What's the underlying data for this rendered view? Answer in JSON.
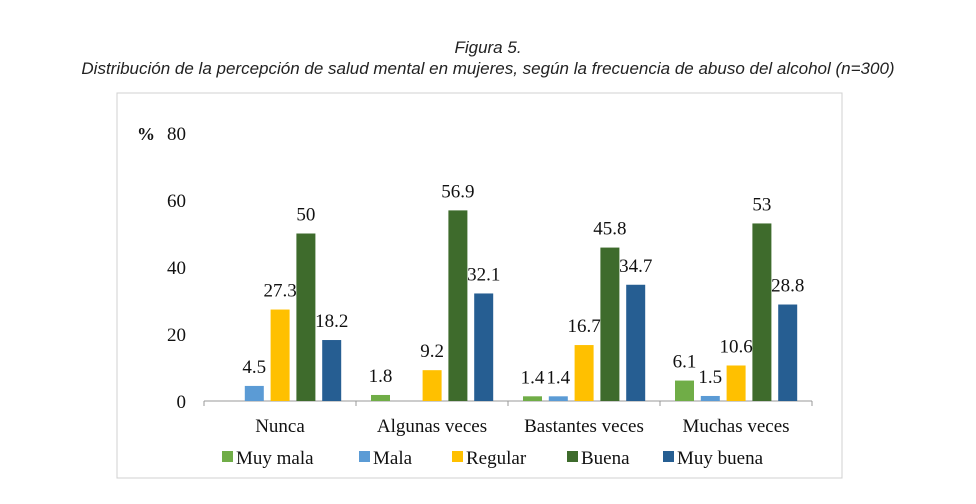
{
  "chart_data": {
    "type": "bar",
    "title": "Figura 5.",
    "subtitle": "Distribución de la percepción de salud mental en mujeres, según la frecuencia de abuso del alcohol (n=300)",
    "ylabel": "%",
    "xlabel": "",
    "ylim": [
      0,
      80
    ],
    "yticks": [
      0,
      20,
      40,
      60,
      80
    ],
    "grid": false,
    "legend": "bottom",
    "categories": [
      "Nunca",
      "Algunas veces",
      "Bastantes veces",
      "Muchas veces"
    ],
    "series": [
      {
        "name": "Muy mala",
        "color": "#70ad47",
        "values": [
          null,
          1.8,
          1.4,
          6.1
        ]
      },
      {
        "name": "Mala",
        "color": "#5b9bd5",
        "values": [
          4.5,
          null,
          1.4,
          1.5
        ]
      },
      {
        "name": "Regular",
        "color": "#ffc000",
        "values": [
          27.3,
          9.2,
          16.7,
          10.6
        ]
      },
      {
        "name": "Buena",
        "color": "#3e6b2c",
        "values": [
          50,
          56.9,
          45.8,
          53
        ]
      },
      {
        "name": "Muy buena",
        "color": "#265e92",
        "values": [
          18.2,
          32.1,
          34.7,
          28.8
        ]
      }
    ]
  }
}
